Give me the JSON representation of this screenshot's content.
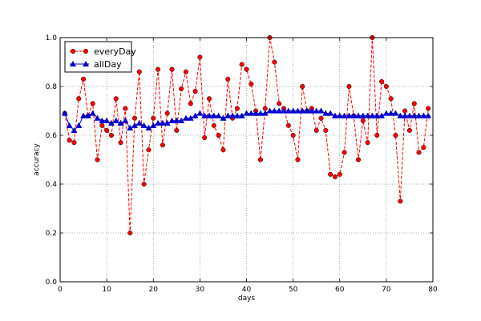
{
  "chart_data": {
    "type": "line",
    "title": "",
    "xlabel": "days",
    "ylabel": "accuracy",
    "xlim": [
      0,
      80
    ],
    "ylim": [
      0.0,
      1.0
    ],
    "xticks": [
      0,
      10,
      20,
      30,
      40,
      50,
      60,
      70,
      80
    ],
    "yticks": [
      0.0,
      0.2,
      0.4,
      0.6,
      0.8,
      1.0
    ],
    "xtick_labels": [
      "0",
      "10",
      "20",
      "30",
      "40",
      "50",
      "60",
      "70",
      "80"
    ],
    "ytick_labels": [
      "0.0",
      "0.2",
      "0.4",
      "0.6",
      "0.8",
      "1.0"
    ],
    "grid": true,
    "legend_position": "top-left",
    "x": [
      1,
      2,
      3,
      4,
      5,
      6,
      7,
      8,
      9,
      10,
      11,
      12,
      13,
      14,
      15,
      16,
      17,
      18,
      19,
      20,
      21,
      22,
      23,
      24,
      25,
      26,
      27,
      28,
      29,
      30,
      31,
      32,
      33,
      34,
      35,
      36,
      37,
      38,
      39,
      40,
      41,
      42,
      43,
      44,
      45,
      46,
      47,
      48,
      49,
      50,
      51,
      52,
      53,
      54,
      55,
      56,
      57,
      58,
      59,
      60,
      61,
      62,
      63,
      64,
      65,
      66,
      67,
      68,
      69,
      70,
      71,
      72,
      73,
      74,
      75,
      76,
      77,
      78,
      79
    ],
    "series": [
      {
        "name": "everyDay",
        "color": "#ff0000",
        "line_style": "dashed",
        "marker": "circle",
        "values": [
          0.69,
          0.58,
          0.57,
          0.75,
          0.83,
          0.68,
          0.73,
          0.5,
          0.64,
          0.62,
          0.6,
          0.75,
          0.57,
          0.71,
          0.2,
          0.67,
          0.86,
          0.4,
          0.54,
          0.67,
          0.87,
          0.56,
          0.69,
          0.87,
          0.62,
          0.79,
          0.86,
          0.73,
          0.78,
          0.92,
          0.59,
          0.75,
          0.64,
          0.6,
          0.54,
          0.83,
          0.67,
          0.71,
          0.89,
          0.87,
          0.81,
          0.7,
          0.5,
          0.71,
          1.0,
          0.9,
          0.73,
          0.71,
          0.64,
          0.6,
          0.5,
          0.8,
          0.7,
          0.71,
          0.62,
          0.67,
          0.62,
          0.44,
          0.43,
          0.44,
          0.53,
          0.8,
          0.68,
          0.5,
          0.66,
          0.57,
          1.0,
          0.6,
          0.82,
          0.8,
          0.75,
          0.6,
          0.33,
          0.7,
          0.62,
          0.73,
          0.53,
          0.55,
          0.71
        ]
      },
      {
        "name": "allDay",
        "color": "#0000cc",
        "line_style": "solid",
        "marker": "triangle",
        "values": [
          0.69,
          0.64,
          0.62,
          0.64,
          0.68,
          0.68,
          0.69,
          0.67,
          0.66,
          0.66,
          0.65,
          0.66,
          0.65,
          0.66,
          0.63,
          0.64,
          0.65,
          0.64,
          0.63,
          0.64,
          0.65,
          0.65,
          0.65,
          0.66,
          0.66,
          0.66,
          0.67,
          0.67,
          0.68,
          0.69,
          0.68,
          0.68,
          0.68,
          0.68,
          0.67,
          0.68,
          0.68,
          0.68,
          0.68,
          0.69,
          0.69,
          0.69,
          0.69,
          0.69,
          0.7,
          0.7,
          0.7,
          0.7,
          0.7,
          0.7,
          0.7,
          0.7,
          0.7,
          0.7,
          0.7,
          0.7,
          0.69,
          0.69,
          0.68,
          0.68,
          0.68,
          0.68,
          0.68,
          0.68,
          0.68,
          0.68,
          0.68,
          0.68,
          0.68,
          0.69,
          0.69,
          0.69,
          0.68,
          0.68,
          0.68,
          0.68,
          0.68,
          0.68,
          0.68
        ]
      }
    ]
  }
}
